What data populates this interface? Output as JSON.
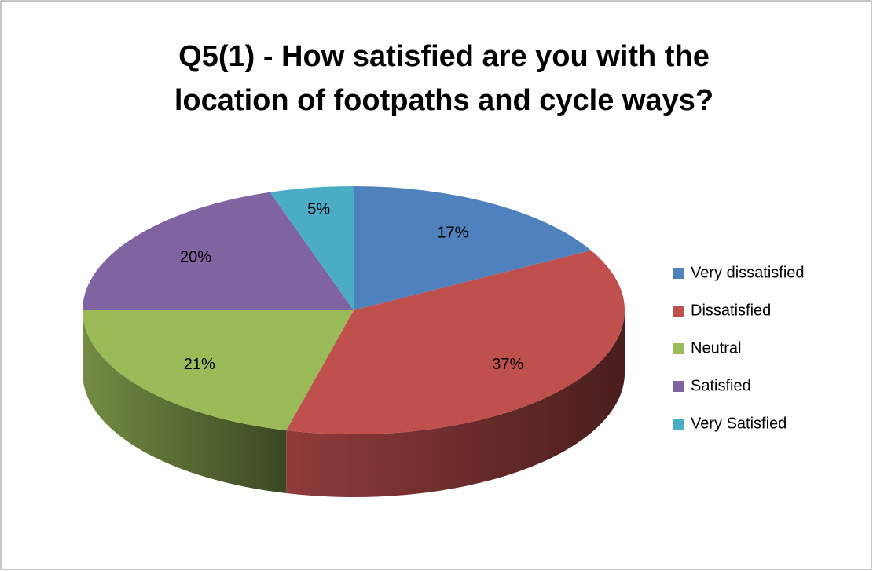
{
  "chart_data": {
    "type": "pie",
    "title": "Q5(1) - How satisfied are you with the location of footpaths and cycle ways?",
    "categories": [
      "Very dissatisfied",
      "Dissatisfied",
      "Neutral",
      "Satisfied",
      "Very Satisfied"
    ],
    "values": [
      17,
      37,
      21,
      20,
      5
    ],
    "value_labels": [
      "17%",
      "37%",
      "21%",
      "20%",
      "5%"
    ],
    "colors": [
      "#4f81bd",
      "#c0504d",
      "#9bbb59",
      "#8064a2",
      "#4bacc6"
    ],
    "legend": "right"
  }
}
